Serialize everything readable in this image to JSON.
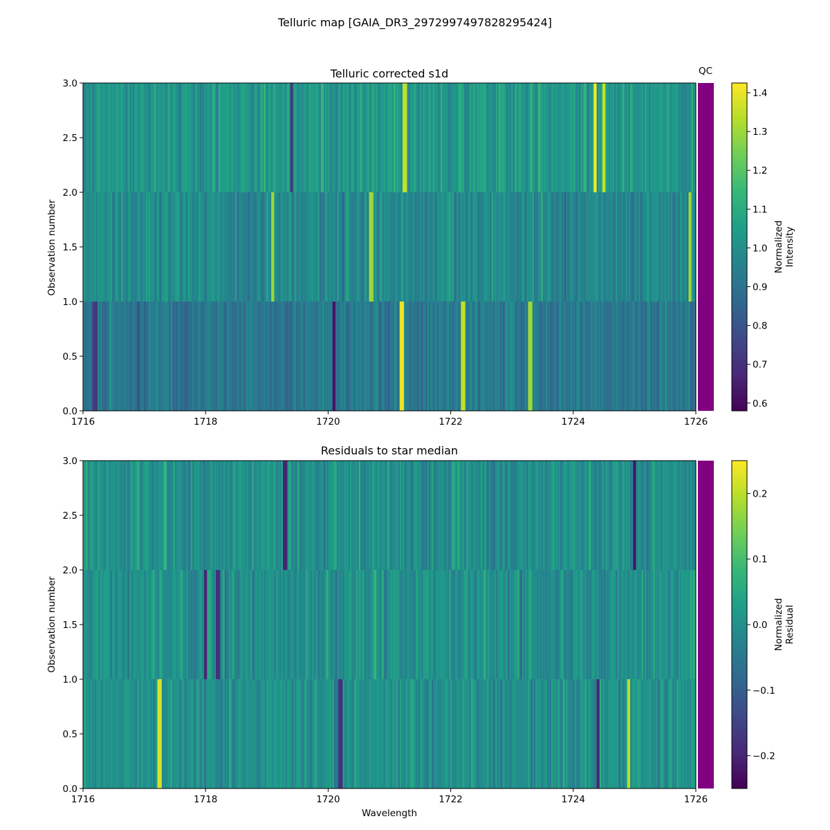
{
  "figure": {
    "title": "Telluric map [GAIA_DR3_2972997497828295424]"
  },
  "colors": {
    "qc_bar": "#800080",
    "viridis_stops": [
      "#440154",
      "#482878",
      "#3e4989",
      "#31688e",
      "#26828e",
      "#1f9e89",
      "#35b779",
      "#6ece58",
      "#b5de2b",
      "#fde725"
    ]
  },
  "chart_data": [
    {
      "type": "heatmap",
      "title": "Telluric corrected s1d",
      "xlabel": "",
      "ylabel": "Observation number",
      "xlim": [
        1716,
        1726
      ],
      "ylim": [
        0.0,
        3.0
      ],
      "x_ticks": [
        1716,
        1718,
        1720,
        1722,
        1724,
        1726
      ],
      "y_ticks": [
        "0.0",
        "0.5",
        "1.0",
        "1.5",
        "2.0",
        "2.5",
        "3.0"
      ],
      "rows": 3,
      "qc_label": "QC",
      "colorbar": {
        "label_lines": [
          "Normalized",
          "Intensity"
        ],
        "range": [
          0.58,
          1.425
        ],
        "ticks": [
          "0.6",
          "0.7",
          "0.8",
          "0.9",
          "1.0",
          "1.1",
          "1.2",
          "1.3",
          "1.4"
        ]
      },
      "features": [
        {
          "wavelength": 1716.2,
          "row": 0,
          "value": 0.72
        },
        {
          "wavelength": 1716.9,
          "row": 0,
          "value": 0.8
        },
        {
          "wavelength": 1719.1,
          "row": 1,
          "value": 1.3
        },
        {
          "wavelength": 1719.4,
          "row": 2,
          "value": 0.72
        },
        {
          "wavelength": 1720.1,
          "row": 0,
          "value": 0.62
        },
        {
          "wavelength": 1720.7,
          "row": 1,
          "value": 1.3
        },
        {
          "wavelength": 1721.2,
          "row": 0,
          "value": 1.4
        },
        {
          "wavelength": 1721.25,
          "row": 2,
          "value": 1.35
        },
        {
          "wavelength": 1722.2,
          "row": 0,
          "value": 1.35
        },
        {
          "wavelength": 1723.3,
          "row": 0,
          "value": 1.3
        },
        {
          "wavelength": 1724.35,
          "row": 2,
          "value": 1.42
        },
        {
          "wavelength": 1724.5,
          "row": 2,
          "value": 1.35
        },
        {
          "wavelength": 1725.9,
          "row": 1,
          "value": 1.3
        }
      ]
    },
    {
      "type": "heatmap",
      "title": "Residuals to star median",
      "xlabel": "Wavelength",
      "ylabel": "Observation number",
      "xlim": [
        1716,
        1726
      ],
      "ylim": [
        0.0,
        3.0
      ],
      "x_ticks": [
        1716,
        1718,
        1720,
        1722,
        1724,
        1726
      ],
      "y_ticks": [
        "0.0",
        "0.5",
        "1.0",
        "1.5",
        "2.0",
        "2.5",
        "3.0"
      ],
      "rows": 3,
      "qc_label": "",
      "colorbar": {
        "label_lines": [
          "Normalized",
          "Residual"
        ],
        "range": [
          -0.25,
          0.25
        ],
        "ticks": [
          "−0.2",
          "−0.1",
          "0.0",
          "0.1",
          "0.2"
        ]
      },
      "features": [
        {
          "wavelength": 1717.25,
          "row": 0,
          "value": 0.22
        },
        {
          "wavelength": 1718.0,
          "row": 1,
          "value": -0.2
        },
        {
          "wavelength": 1718.2,
          "row": 1,
          "value": -0.18
        },
        {
          "wavelength": 1719.3,
          "row": 2,
          "value": -0.2
        },
        {
          "wavelength": 1720.2,
          "row": 0,
          "value": -0.18
        },
        {
          "wavelength": 1724.4,
          "row": 0,
          "value": -0.2
        },
        {
          "wavelength": 1724.9,
          "row": 0,
          "value": 0.2
        },
        {
          "wavelength": 1725.0,
          "row": 2,
          "value": -0.22
        }
      ]
    }
  ]
}
